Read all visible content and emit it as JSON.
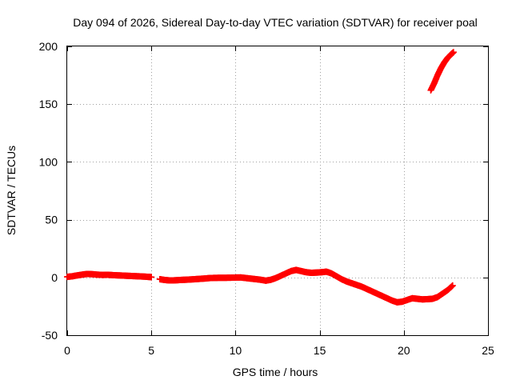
{
  "chart_data": {
    "type": "scatter",
    "title": "Day 094 of 2026, Sidereal Day-to-day VTEC variation (SDTVAR) for receiver poal",
    "xlabel": "GPS time / hours",
    "ylabel": "SDTVAR / TECUs",
    "xlim": [
      0,
      25
    ],
    "ylim": [
      -50,
      200
    ],
    "xticks": [
      0,
      5,
      10,
      15,
      20,
      25
    ],
    "yticks": [
      -50,
      0,
      50,
      100,
      150,
      200
    ],
    "grid": true,
    "marker": "plus",
    "series": [
      {
        "name": "SDTVAR",
        "color": "#ff0000",
        "segments": [
          [
            [
              0.0,
              0.5
            ],
            [
              0.3,
              1.0
            ],
            [
              0.6,
              1.8
            ],
            [
              0.9,
              2.5
            ],
            [
              1.2,
              3.0
            ],
            [
              1.5,
              2.8
            ],
            [
              1.8,
              2.4
            ],
            [
              2.1,
              2.2
            ],
            [
              2.4,
              2.3
            ],
            [
              2.7,
              2.0
            ],
            [
              3.0,
              1.8
            ],
            [
              3.3,
              1.6
            ],
            [
              3.6,
              1.4
            ],
            [
              3.9,
              1.2
            ],
            [
              4.2,
              1.0
            ],
            [
              4.5,
              0.8
            ],
            [
              4.8,
              0.5
            ],
            [
              5.0,
              0.3
            ]
          ],
          [
            [
              5.5,
              -1.5
            ],
            [
              5.8,
              -2.2
            ],
            [
              6.1,
              -2.6
            ],
            [
              6.4,
              -2.5
            ],
            [
              6.7,
              -2.2
            ],
            [
              7.0,
              -2.0
            ],
            [
              7.3,
              -1.8
            ],
            [
              7.6,
              -1.5
            ],
            [
              7.9,
              -1.2
            ],
            [
              8.2,
              -0.9
            ],
            [
              8.5,
              -0.5
            ],
            [
              8.8,
              -0.4
            ],
            [
              9.1,
              -0.3
            ],
            [
              9.4,
              -0.3
            ],
            [
              9.7,
              -0.2
            ],
            [
              10.0,
              -0.1
            ],
            [
              10.3,
              0.0
            ],
            [
              10.6,
              -0.5
            ],
            [
              10.9,
              -1.0
            ],
            [
              11.2,
              -1.5
            ],
            [
              11.5,
              -2.0
            ],
            [
              11.8,
              -2.8
            ],
            [
              12.1,
              -2.0
            ],
            [
              12.4,
              -0.5
            ],
            [
              12.7,
              1.5
            ],
            [
              13.0,
              3.5
            ],
            [
              13.3,
              5.5
            ],
            [
              13.6,
              6.5
            ],
            [
              13.9,
              5.5
            ],
            [
              14.2,
              4.5
            ],
            [
              14.5,
              4.0
            ],
            [
              14.8,
              4.2
            ],
            [
              15.1,
              4.5
            ],
            [
              15.4,
              5.0
            ],
            [
              15.7,
              3.5
            ],
            [
              16.0,
              1.0
            ],
            [
              16.3,
              -1.5
            ],
            [
              16.6,
              -3.5
            ],
            [
              16.9,
              -5.0
            ],
            [
              17.2,
              -6.5
            ],
            [
              17.5,
              -8.0
            ],
            [
              17.8,
              -10.0
            ],
            [
              18.1,
              -12.0
            ],
            [
              18.4,
              -14.0
            ],
            [
              18.7,
              -16.0
            ],
            [
              19.0,
              -18.0
            ],
            [
              19.3,
              -20.0
            ],
            [
              19.6,
              -21.5
            ],
            [
              19.9,
              -21.0
            ],
            [
              20.2,
              -19.5
            ],
            [
              20.5,
              -18.0
            ],
            [
              20.8,
              -18.5
            ],
            [
              21.1,
              -19.0
            ],
            [
              21.4,
              -18.8
            ],
            [
              21.7,
              -18.5
            ],
            [
              22.0,
              -17.0
            ],
            [
              22.3,
              -14.0
            ],
            [
              22.6,
              -11.0
            ],
            [
              22.9,
              -7.0
            ]
          ],
          [
            [
              21.6,
              162
            ],
            [
              21.8,
              168
            ],
            [
              22.0,
              175
            ],
            [
              22.2,
              181
            ],
            [
              22.4,
              186
            ],
            [
              22.6,
              190
            ],
            [
              22.8,
              193
            ],
            [
              22.95,
              195
            ]
          ]
        ]
      }
    ]
  }
}
